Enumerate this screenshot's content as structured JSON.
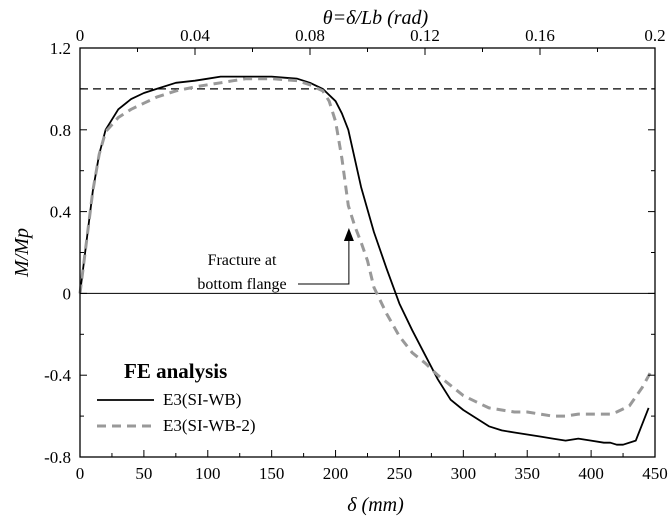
{
  "chart_data": {
    "type": "line",
    "xlabel": "δ (mm)",
    "ylabel": "M/Mp",
    "x2label": "θ=δ/Lb (rad)",
    "xlim": [
      0,
      450
    ],
    "ylim": [
      -0.8,
      1.2
    ],
    "x2lim": [
      0,
      0.2
    ],
    "x_ticks": [
      "0",
      "50",
      "100",
      "150",
      "200",
      "250",
      "300",
      "350",
      "400",
      "450"
    ],
    "y_ticks": [
      "-0.8",
      "-0.4",
      "0",
      "0.4",
      "0.8",
      "1.2"
    ],
    "x2_ticks": [
      "0",
      "0.04",
      "0.08",
      "0.12",
      "0.16",
      "0.2"
    ],
    "reference_lines": [
      {
        "y": 1.0,
        "style": "dashed"
      },
      {
        "y": 0.0,
        "style": "solid"
      }
    ],
    "legend": {
      "title": "FE analysis",
      "placement": "bottom-left"
    },
    "series": [
      {
        "name": "E3(SI-WB)",
        "color": "#000000",
        "style": "solid",
        "x": [
          0,
          5,
          10,
          15,
          20,
          30,
          40,
          50,
          60,
          75,
          90,
          100,
          110,
          120,
          130,
          140,
          150,
          160,
          170,
          180,
          190,
          200,
          205,
          210,
          215,
          220,
          230,
          240,
          250,
          260,
          270,
          280,
          290,
          300,
          310,
          320,
          330,
          340,
          350,
          360,
          370,
          380,
          390,
          400,
          410,
          415,
          420,
          425,
          435,
          445
        ],
        "y": [
          0,
          0.25,
          0.5,
          0.68,
          0.8,
          0.9,
          0.95,
          0.98,
          1.0,
          1.03,
          1.04,
          1.05,
          1.06,
          1.06,
          1.06,
          1.06,
          1.06,
          1.055,
          1.05,
          1.03,
          1.0,
          0.94,
          0.88,
          0.8,
          0.66,
          0.52,
          0.3,
          0.12,
          -0.05,
          -0.18,
          -0.3,
          -0.42,
          -0.52,
          -0.57,
          -0.61,
          -0.65,
          -0.67,
          -0.68,
          -0.69,
          -0.7,
          -0.71,
          -0.72,
          -0.71,
          -0.72,
          -0.73,
          -0.73,
          -0.74,
          -0.74,
          -0.72,
          -0.56
        ]
      },
      {
        "name": "E3(SI-WB-2)",
        "color": "#999999",
        "style": "dashed",
        "x": [
          0,
          5,
          10,
          15,
          20,
          30,
          40,
          50,
          60,
          75,
          90,
          100,
          110,
          120,
          130,
          140,
          150,
          160,
          170,
          180,
          190,
          195,
          200,
          205,
          210,
          215,
          220,
          225,
          230,
          240,
          250,
          260,
          270,
          280,
          290,
          300,
          310,
          320,
          330,
          340,
          350,
          360,
          370,
          380,
          390,
          400,
          410,
          415,
          420,
          430,
          440,
          447
        ],
        "y": [
          0,
          0.25,
          0.5,
          0.68,
          0.79,
          0.86,
          0.9,
          0.93,
          0.96,
          0.99,
          1.01,
          1.02,
          1.03,
          1.04,
          1.05,
          1.05,
          1.05,
          1.045,
          1.04,
          1.02,
          0.99,
          0.94,
          0.84,
          0.66,
          0.43,
          0.33,
          0.25,
          0.16,
          0.03,
          -0.1,
          -0.21,
          -0.29,
          -0.34,
          -0.4,
          -0.45,
          -0.5,
          -0.53,
          -0.56,
          -0.57,
          -0.58,
          -0.58,
          -0.59,
          -0.6,
          -0.6,
          -0.59,
          -0.59,
          -0.59,
          -0.59,
          -0.58,
          -0.55,
          -0.46,
          -0.38
        ]
      }
    ],
    "annotations": [
      {
        "lines": [
          "Fracture at",
          "bottom flange"
        ],
        "arrow_to": {
          "x": 212,
          "y": 0.32
        }
      }
    ]
  }
}
